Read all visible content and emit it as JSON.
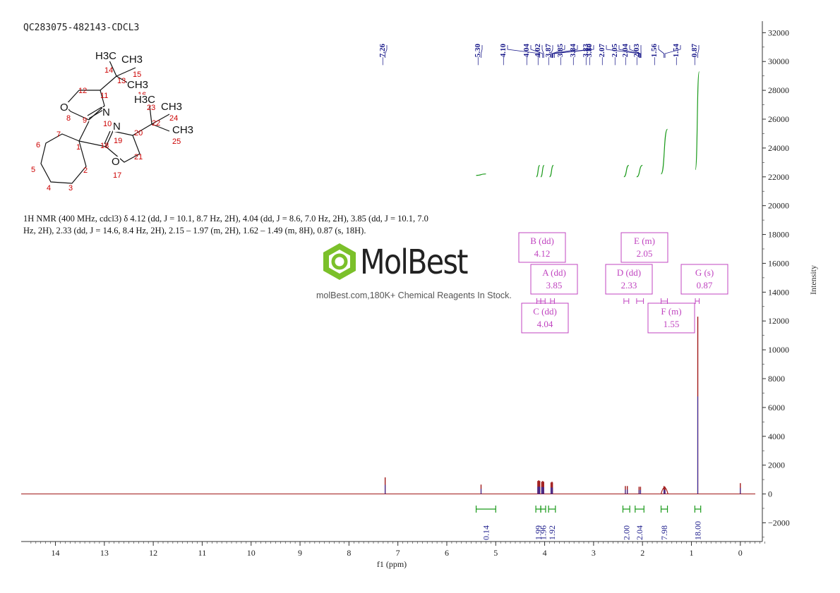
{
  "header": {
    "sample_id": "QC283075-482143-CDCL3"
  },
  "nmr_description": "1H NMR (400 MHz, cdcl3) δ 4.12 (dd, J = 10.1, 8.7 Hz, 2H), 4.04 (dd, J = 8.6, 7.0 Hz, 2H), 3.85 (dd, J = 10.1, 7.0 Hz, 2H), 2.33 (dd, J = 14.6, 8.4 Hz, 2H), 2.15 – 1.97 (m, 2H), 1.62 – 1.49 (m, 8H), 0.87 (s, 18H).",
  "logo": {
    "name": "MolBest",
    "tagline": "molBest.com,180K+ Chemical Reagents In Stock."
  },
  "structure": {
    "atom_labels": [
      "H3C",
      "CH3",
      "14",
      "15",
      "13",
      "11",
      "12",
      "CH3",
      "16",
      "O",
      "8",
      "N",
      "H3C",
      "23",
      "CH3",
      "24",
      "22",
      "N",
      "10",
      "9",
      "19",
      "20",
      "CH3",
      "25",
      "7",
      "6",
      "1",
      "18",
      "21",
      "O",
      "17",
      "5",
      "2",
      "4",
      "3"
    ]
  },
  "colors": {
    "spectrum": "#a01818",
    "integral": "#1a9a1a",
    "peak_labels": "#1a1a8a",
    "multiplet_boxes": "#c044c0",
    "axis": "#333333"
  },
  "chart_data": {
    "type": "line",
    "xlabel": "f1 (ppm)",
    "ylabel": "Intensity",
    "xlim": [
      14.7,
      -0.45
    ],
    "ylim": [
      -3300,
      32800
    ],
    "x_ticks": [
      14,
      13,
      12,
      11,
      10,
      9,
      8,
      7,
      6,
      5,
      4,
      3,
      2,
      1,
      0
    ],
    "y_ticks": [
      -2000,
      0,
      2000,
      4000,
      6000,
      8000,
      10000,
      12000,
      14000,
      16000,
      18000,
      20000,
      22000,
      24000,
      26000,
      28000,
      30000,
      32000
    ],
    "peak_labels": [
      "7.26",
      "5.30",
      "4.10",
      "4.04",
      "4.02",
      "3.87",
      "3.85",
      "3.84",
      "3.83",
      "3.80",
      "2.07",
      "2.05",
      "2.04",
      "2.03",
      "1.56",
      "1.54",
      "0.87"
    ],
    "peaks": [
      {
        "ppm": 7.26,
        "height": 1150
      },
      {
        "ppm": 5.3,
        "height": 650
      },
      {
        "ppm": 4.14,
        "height": 900
      },
      {
        "ppm": 4.12,
        "height": 950
      },
      {
        "ppm": 4.1,
        "height": 900
      },
      {
        "ppm": 4.06,
        "height": 850
      },
      {
        "ppm": 4.04,
        "height": 900
      },
      {
        "ppm": 4.02,
        "height": 850
      },
      {
        "ppm": 3.87,
        "height": 800
      },
      {
        "ppm": 3.85,
        "height": 850
      },
      {
        "ppm": 3.84,
        "height": 800
      },
      {
        "ppm": 2.35,
        "height": 550
      },
      {
        "ppm": 2.31,
        "height": 550
      },
      {
        "ppm": 2.07,
        "height": 500
      },
      {
        "ppm": 2.04,
        "height": 500
      },
      {
        "ppm": 1.56,
        "height": 550
      },
      {
        "ppm": 1.54,
        "height": 500
      },
      {
        "ppm": 0.87,
        "height": 12300
      },
      {
        "ppm": 0.0,
        "height": 750
      }
    ],
    "multiplets": [
      {
        "letter": "B",
        "type": "dd",
        "shift": "4.12"
      },
      {
        "letter": "E",
        "type": "m",
        "shift": "2.05"
      },
      {
        "letter": "A",
        "type": "dd",
        "shift": "3.85"
      },
      {
        "letter": "D",
        "type": "dd",
        "shift": "2.33"
      },
      {
        "letter": "G",
        "type": "s",
        "shift": "0.87"
      },
      {
        "letter": "C",
        "type": "dd",
        "shift": "4.04"
      },
      {
        "letter": "F",
        "type": "m",
        "shift": "1.55"
      }
    ],
    "integrals": [
      {
        "from": 5.4,
        "to": 5.0,
        "value": "0.14"
      },
      {
        "from": 4.18,
        "to": 4.08,
        "value": "1.99"
      },
      {
        "from": 4.08,
        "to": 3.98,
        "value": "1.96"
      },
      {
        "from": 3.92,
        "to": 3.78,
        "value": "1.92"
      },
      {
        "from": 2.4,
        "to": 2.26,
        "value": "2.00"
      },
      {
        "from": 2.15,
        "to": 1.97,
        "value": "2.04"
      },
      {
        "from": 1.62,
        "to": 1.49,
        "value": "7.98"
      },
      {
        "from": 0.93,
        "to": 0.81,
        "value": "18.00"
      }
    ]
  }
}
